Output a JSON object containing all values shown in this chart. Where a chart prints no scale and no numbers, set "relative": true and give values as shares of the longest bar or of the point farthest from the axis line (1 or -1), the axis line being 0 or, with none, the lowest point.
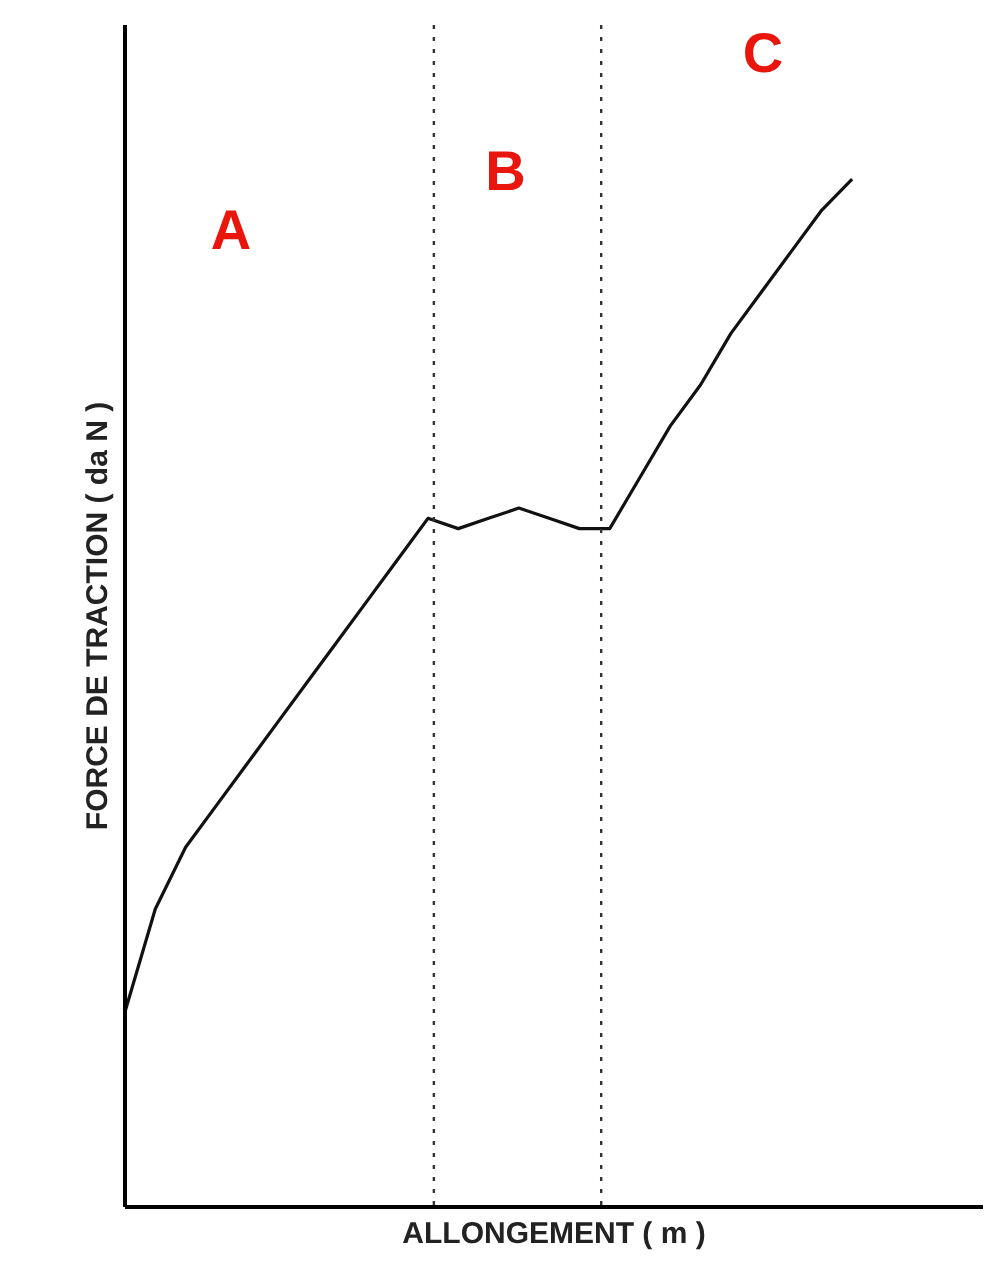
{
  "chart_data": {
    "type": "line",
    "relative": true,
    "xlabel": "ALLONGEMENT ( m )",
    "ylabel": "FORCE DE TRACTION ( da N )",
    "categories": [
      null,
      null,
      null,
      null,
      null,
      null,
      null,
      null,
      null,
      null,
      null,
      null,
      null,
      null,
      null,
      null,
      null,
      null,
      null,
      null,
      null,
      null,
      null,
      null,
      null
    ],
    "series": [
      {
        "color": "#111111",
        "values": [
          0.19,
          0.29,
          0.35,
          0.39,
          0.43,
          0.47,
          0.51,
          0.55,
          0.59,
          0.63,
          0.67,
          0.66,
          0.67,
          0.68,
          0.67,
          0.66,
          0.66,
          0.71,
          0.76,
          0.8,
          0.85,
          0.89,
          0.93,
          0.97,
          1.0
        ]
      }
    ],
    "annotations": [
      "A",
      "B",
      "C"
    ],
    "marker": "none",
    "line_style": "solid"
  }
}
